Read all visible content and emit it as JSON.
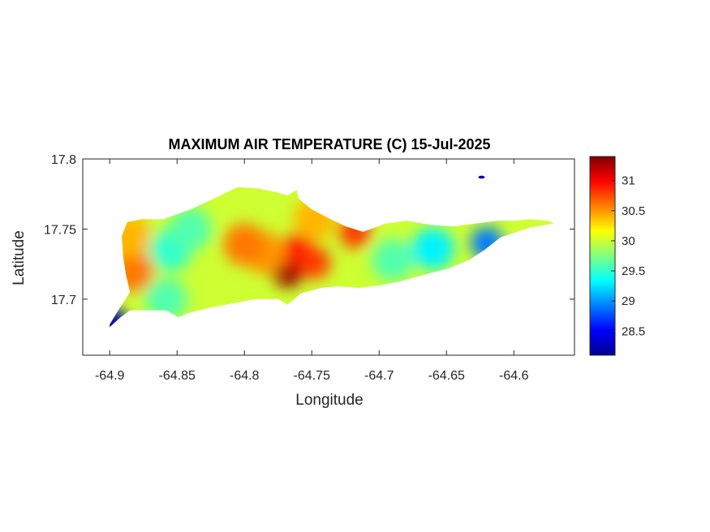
{
  "figure": {
    "title": "MAXIMUM AIR TEMPERATURE (C) 15-Jul-2025"
  },
  "chart_data": {
    "type": "heatmap",
    "title": "MAXIMUM AIR TEMPERATURE (C) 15-Jul-2025",
    "xlabel": "Longitude",
    "ylabel": "Latitude",
    "xlim": [
      -64.92,
      -64.555
    ],
    "ylim": [
      17.66,
      17.8
    ],
    "xticks": [
      -64.9,
      -64.85,
      -64.8,
      -64.75,
      -64.7,
      -64.65,
      -64.6
    ],
    "xtick_labels": [
      "-64.9",
      "-64.85",
      "-64.8",
      "-64.75",
      "-64.7",
      "-64.65",
      "-64.6"
    ],
    "yticks": [
      17.7,
      17.75,
      17.8
    ],
    "ytick_labels": [
      "17.7",
      "17.75",
      "17.8"
    ],
    "colormap": "jet",
    "colorbar": {
      "range": [
        28.1,
        31.4
      ],
      "ticks": [
        28.5,
        29,
        29.5,
        30,
        30.5,
        31
      ],
      "tick_labels": [
        "28.5",
        "29",
        "29.5",
        "30",
        "30.5",
        "31"
      ]
    },
    "island_outline": [
      [
        -64.9,
        17.68
      ],
      [
        -64.892,
        17.687
      ],
      [
        -64.885,
        17.692
      ],
      [
        -64.875,
        17.692
      ],
      [
        -64.858,
        17.692
      ],
      [
        -64.849,
        17.687
      ],
      [
        -64.842,
        17.69
      ],
      [
        -64.825,
        17.694
      ],
      [
        -64.808,
        17.697
      ],
      [
        -64.792,
        17.7
      ],
      [
        -64.775,
        17.7
      ],
      [
        -64.768,
        17.696
      ],
      [
        -64.763,
        17.7
      ],
      [
        -64.758,
        17.704
      ],
      [
        -64.743,
        17.708
      ],
      [
        -64.73,
        17.709
      ],
      [
        -64.715,
        17.708
      ],
      [
        -64.698,
        17.71
      ],
      [
        -64.683,
        17.713
      ],
      [
        -64.664,
        17.718
      ],
      [
        -64.648,
        17.722
      ],
      [
        -64.633,
        17.728
      ],
      [
        -64.622,
        17.735
      ],
      [
        -64.61,
        17.744
      ],
      [
        -64.588,
        17.751
      ],
      [
        -64.57,
        17.754
      ],
      [
        -64.575,
        17.756
      ],
      [
        -64.588,
        17.757
      ],
      [
        -64.598,
        17.756
      ],
      [
        -64.612,
        17.756
      ],
      [
        -64.628,
        17.754
      ],
      [
        -64.645,
        17.752
      ],
      [
        -64.662,
        17.753
      ],
      [
        -64.68,
        17.756
      ],
      [
        -64.695,
        17.754
      ],
      [
        -64.712,
        17.748
      ],
      [
        -64.725,
        17.752
      ],
      [
        -64.738,
        17.758
      ],
      [
        -64.75,
        17.764
      ],
      [
        -64.76,
        17.772
      ],
      [
        -64.761,
        17.778
      ],
      [
        -64.768,
        17.774
      ],
      [
        -64.775,
        17.776
      ],
      [
        -64.79,
        17.779
      ],
      [
        -64.805,
        17.78
      ],
      [
        -64.82,
        17.773
      ],
      [
        -64.84,
        17.764
      ],
      [
        -64.86,
        17.757
      ],
      [
        -64.876,
        17.757
      ],
      [
        -64.887,
        17.755
      ],
      [
        -64.891,
        17.745
      ],
      [
        -64.89,
        17.73
      ],
      [
        -64.888,
        17.718
      ],
      [
        -64.885,
        17.705
      ],
      [
        -64.893,
        17.693
      ],
      [
        -64.9,
        17.682
      ]
    ],
    "temperature_features": [
      {
        "lon": -64.768,
        "lat": 17.72,
        "value": 31.3
      },
      {
        "lon": -64.76,
        "lat": 17.735,
        "value": 31.0
      },
      {
        "lon": -64.748,
        "lat": 17.726,
        "value": 30.8
      },
      {
        "lon": -64.785,
        "lat": 17.733,
        "value": 30.5
      },
      {
        "lon": -64.8,
        "lat": 17.739,
        "value": 30.6
      },
      {
        "lon": -64.883,
        "lat": 17.72,
        "value": 30.6
      },
      {
        "lon": -64.885,
        "lat": 17.745,
        "value": 30.4
      },
      {
        "lon": -64.718,
        "lat": 17.748,
        "value": 30.8
      },
      {
        "lon": -64.748,
        "lat": 17.757,
        "value": 30.4
      },
      {
        "lon": -64.855,
        "lat": 17.735,
        "value": 29.5
      },
      {
        "lon": -64.84,
        "lat": 17.75,
        "value": 29.6
      },
      {
        "lon": -64.66,
        "lat": 17.736,
        "value": 29.3
      },
      {
        "lon": -64.62,
        "lat": 17.74,
        "value": 28.9
      },
      {
        "lon": -64.69,
        "lat": 17.728,
        "value": 29.6
      },
      {
        "lon": -64.898,
        "lat": 17.682,
        "value": 28.2
      },
      {
        "lon": -64.858,
        "lat": 17.7,
        "value": 29.6
      }
    ],
    "offshore_points": [
      {
        "lon": -64.624,
        "lat": 17.787,
        "value": 28.2
      }
    ]
  }
}
